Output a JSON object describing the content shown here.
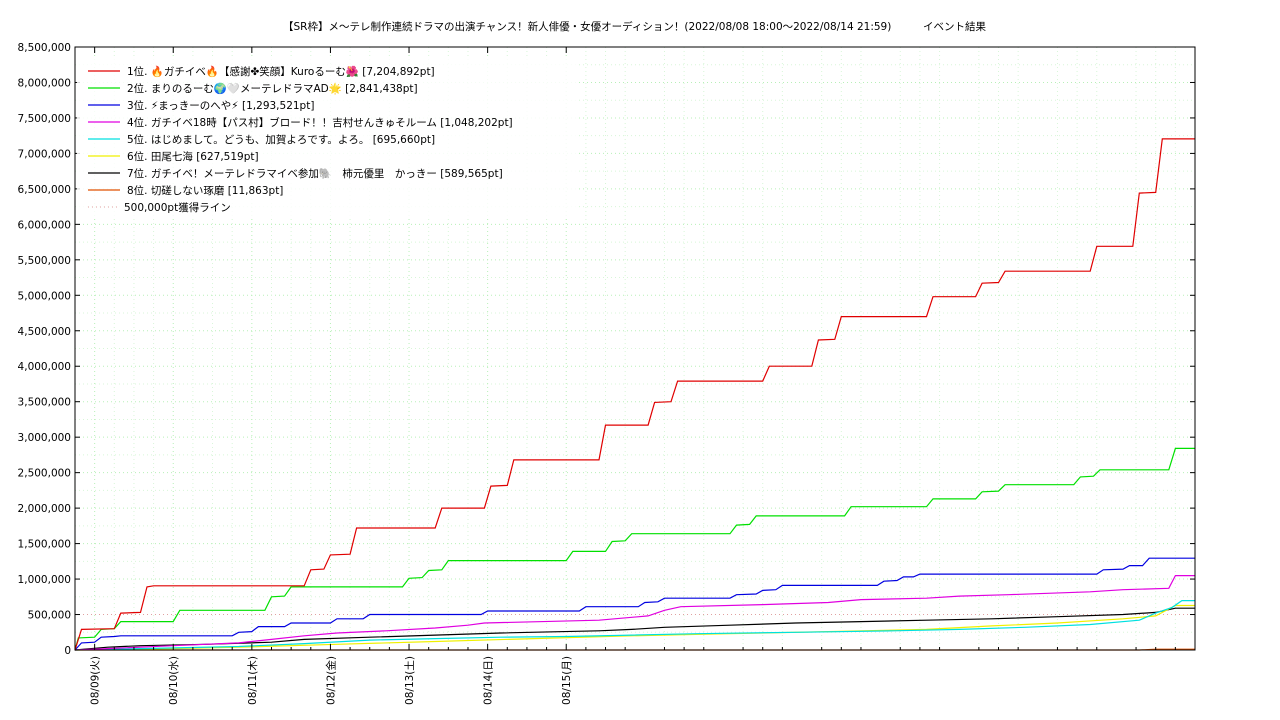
{
  "chart_data": {
    "type": "line",
    "title": "【SR枠】メ〜テレ制作連続ドラマの出演チャンス！新人俳優・女優オーディション！(2022/08/08 18:00〜2022/08/14 21:59)",
    "subtitle": "イベント結果",
    "xlabel": "",
    "ylabel": "",
    "x_ticks": [
      "08/09(火)",
      "08/10(水)",
      "08/11(木)",
      "08/12(金)",
      "08/13(土)",
      "08/14(日)",
      "08/15(月)"
    ],
    "x_start": "2022/08/08 18:00",
    "x_end": "2022/08/15 00:00",
    "y_ticks": [
      "0",
      "500,000",
      "1,000,000",
      "1,500,000",
      "2,000,000",
      "2,500,000",
      "3,000,000",
      "3,500,000",
      "4,000,000",
      "4,500,000",
      "5,000,000",
      "5,500,000",
      "6,000,000",
      "6,500,000",
      "7,000,000",
      "7,500,000",
      "8,000,000",
      "8,500,000"
    ],
    "ylim": [
      0,
      8500000
    ],
    "grid": true,
    "legend_position": "top-left",
    "series": [
      {
        "name": "1位. 🔥ガチイベ🔥【感謝✤笑顔】Kuroるーむ🌺 [7,204,892pt]",
        "color": "#e00000",
        "style": "solid",
        "points": [
          [
            0,
            0
          ],
          [
            2,
            290000
          ],
          [
            12,
            300000
          ],
          [
            14,
            520000
          ],
          [
            20,
            530000
          ],
          [
            22,
            890000
          ],
          [
            24,
            905000
          ],
          [
            70,
            905000
          ],
          [
            72,
            1130000
          ],
          [
            76,
            1140000
          ],
          [
            78,
            1340000
          ],
          [
            84,
            1350000
          ],
          [
            86,
            1720000
          ],
          [
            110,
            1720000
          ],
          [
            112,
            2000000
          ],
          [
            125,
            2000000
          ],
          [
            127,
            2310000
          ],
          [
            132,
            2320000
          ],
          [
            134,
            2680000
          ],
          [
            160,
            2680000
          ],
          [
            162,
            3170000
          ],
          [
            175,
            3170000
          ],
          [
            177,
            3490000
          ],
          [
            182,
            3500000
          ],
          [
            184,
            3790000
          ],
          [
            210,
            3790000
          ],
          [
            212,
            4000000
          ],
          [
            225,
            4000000
          ],
          [
            227,
            4370000
          ],
          [
            232,
            4380000
          ],
          [
            234,
            4700000
          ],
          [
            260,
            4700000
          ],
          [
            262,
            4980000
          ],
          [
            275,
            4980000
          ],
          [
            277,
            5170000
          ],
          [
            282,
            5180000
          ],
          [
            284,
            5340000
          ],
          [
            310,
            5340000
          ],
          [
            312,
            5690000
          ],
          [
            323,
            5690000
          ],
          [
            325,
            6440000
          ],
          [
            330,
            6450000
          ],
          [
            332,
            7204892
          ],
          [
            342,
            7204892
          ]
        ]
      },
      {
        "name": "2位. まりのるーむ🌍🤍メーテレドラマAD🌟 [2,841,438pt]",
        "color": "#00e000",
        "style": "solid",
        "points": [
          [
            0,
            0
          ],
          [
            1,
            170000
          ],
          [
            6,
            180000
          ],
          [
            8,
            290000
          ],
          [
            12,
            300000
          ],
          [
            14,
            400000
          ],
          [
            30,
            400000
          ],
          [
            32,
            560000
          ],
          [
            58,
            560000
          ],
          [
            60,
            750000
          ],
          [
            64,
            760000
          ],
          [
            66,
            890000
          ],
          [
            100,
            890000
          ],
          [
            102,
            1010000
          ],
          [
            106,
            1020000
          ],
          [
            108,
            1120000
          ],
          [
            112,
            1130000
          ],
          [
            114,
            1260000
          ],
          [
            150,
            1260000
          ],
          [
            152,
            1390000
          ],
          [
            162,
            1390000
          ],
          [
            164,
            1530000
          ],
          [
            168,
            1540000
          ],
          [
            170,
            1640000
          ],
          [
            200,
            1640000
          ],
          [
            202,
            1760000
          ],
          [
            206,
            1770000
          ],
          [
            208,
            1890000
          ],
          [
            235,
            1890000
          ],
          [
            237,
            2020000
          ],
          [
            260,
            2020000
          ],
          [
            262,
            2130000
          ],
          [
            275,
            2130000
          ],
          [
            277,
            2230000
          ],
          [
            282,
            2240000
          ],
          [
            284,
            2330000
          ],
          [
            305,
            2330000
          ],
          [
            307,
            2440000
          ],
          [
            311,
            2450000
          ],
          [
            313,
            2540000
          ],
          [
            334,
            2540000
          ],
          [
            336,
            2841438
          ],
          [
            342,
            2841438
          ]
        ]
      },
      {
        "name": "3位. ⚡まっきーのへや⚡ [1,293,521pt]",
        "color": "#0000e0",
        "style": "solid",
        "points": [
          [
            0,
            0
          ],
          [
            2,
            100000
          ],
          [
            6,
            110000
          ],
          [
            8,
            180000
          ],
          [
            12,
            190000
          ],
          [
            14,
            200000
          ],
          [
            48,
            200000
          ],
          [
            50,
            250000
          ],
          [
            54,
            260000
          ],
          [
            56,
            330000
          ],
          [
            64,
            330000
          ],
          [
            66,
            380000
          ],
          [
            78,
            380000
          ],
          [
            80,
            440000
          ],
          [
            88,
            440000
          ],
          [
            90,
            500000
          ],
          [
            124,
            500000
          ],
          [
            126,
            550000
          ],
          [
            154,
            550000
          ],
          [
            156,
            610000
          ],
          [
            172,
            610000
          ],
          [
            174,
            670000
          ],
          [
            178,
            680000
          ],
          [
            180,
            730000
          ],
          [
            200,
            730000
          ],
          [
            202,
            780000
          ],
          [
            208,
            790000
          ],
          [
            210,
            840000
          ],
          [
            214,
            850000
          ],
          [
            216,
            910000
          ],
          [
            245,
            910000
          ],
          [
            247,
            970000
          ],
          [
            251,
            980000
          ],
          [
            253,
            1030000
          ],
          [
            256,
            1030000
          ],
          [
            258,
            1070000
          ],
          [
            312,
            1070000
          ],
          [
            314,
            1130000
          ],
          [
            320,
            1140000
          ],
          [
            322,
            1190000
          ],
          [
            326,
            1190000
          ],
          [
            328,
            1293521
          ],
          [
            342,
            1293521
          ]
        ]
      },
      {
        "name": "4位. ガチイベ18時【パス村】ブロード！！吉村せんきゅそルーム [1,048,202pt]",
        "color": "#e000e0",
        "style": "solid",
        "points": [
          [
            0,
            0
          ],
          [
            10,
            20000
          ],
          [
            30,
            60000
          ],
          [
            50,
            100000
          ],
          [
            60,
            150000
          ],
          [
            70,
            200000
          ],
          [
            80,
            240000
          ],
          [
            95,
            270000
          ],
          [
            110,
            310000
          ],
          [
            120,
            350000
          ],
          [
            125,
            380000
          ],
          [
            160,
            420000
          ],
          [
            175,
            480000
          ],
          [
            180,
            560000
          ],
          [
            185,
            610000
          ],
          [
            210,
            640000
          ],
          [
            230,
            670000
          ],
          [
            240,
            710000
          ],
          [
            260,
            730000
          ],
          [
            270,
            760000
          ],
          [
            285,
            780000
          ],
          [
            310,
            820000
          ],
          [
            320,
            850000
          ],
          [
            334,
            870000
          ],
          [
            336,
            1048202
          ],
          [
            342,
            1048202
          ]
        ]
      },
      {
        "name": "5位. はじめまして。どうも、加賀よろです。よろ。 [695,660pt]",
        "color": "#00e0e0",
        "style": "solid",
        "points": [
          [
            0,
            0
          ],
          [
            20,
            20000
          ],
          [
            50,
            50000
          ],
          [
            70,
            90000
          ],
          [
            90,
            140000
          ],
          [
            110,
            160000
          ],
          [
            130,
            180000
          ],
          [
            150,
            190000
          ],
          [
            170,
            210000
          ],
          [
            190,
            230000
          ],
          [
            220,
            250000
          ],
          [
            250,
            270000
          ],
          [
            270,
            290000
          ],
          [
            290,
            320000
          ],
          [
            310,
            360000
          ],
          [
            325,
            420000
          ],
          [
            330,
            520000
          ],
          [
            335,
            600000
          ],
          [
            338,
            695660
          ],
          [
            342,
            695660
          ]
        ]
      },
      {
        "name": "6位. 田尾七海 [627,519pt]",
        "color": "#f0f000",
        "style": "solid",
        "points": [
          [
            0,
            0
          ],
          [
            20,
            10000
          ],
          [
            50,
            40000
          ],
          [
            80,
            80000
          ],
          [
            110,
            120000
          ],
          [
            140,
            160000
          ],
          [
            170,
            200000
          ],
          [
            200,
            230000
          ],
          [
            230,
            260000
          ],
          [
            260,
            290000
          ],
          [
            280,
            340000
          ],
          [
            300,
            380000
          ],
          [
            320,
            440000
          ],
          [
            330,
            480000
          ],
          [
            336,
            627519
          ],
          [
            342,
            627519
          ]
        ]
      },
      {
        "name": "7位. ガチイベ！メーテレドラマイベ参加🐘　柿元優里　かっきー [589,565pt]",
        "color": "#000000",
        "style": "solid",
        "points": [
          [
            0,
            0
          ],
          [
            10,
            40000
          ],
          [
            20,
            60000
          ],
          [
            40,
            80000
          ],
          [
            60,
            110000
          ],
          [
            70,
            150000
          ],
          [
            90,
            180000
          ],
          [
            110,
            210000
          ],
          [
            130,
            240000
          ],
          [
            160,
            270000
          ],
          [
            170,
            290000
          ],
          [
            180,
            320000
          ],
          [
            200,
            350000
          ],
          [
            220,
            380000
          ],
          [
            240,
            400000
          ],
          [
            260,
            420000
          ],
          [
            280,
            440000
          ],
          [
            300,
            470000
          ],
          [
            320,
            500000
          ],
          [
            330,
            530000
          ],
          [
            336,
            589565
          ],
          [
            342,
            589565
          ]
        ]
      },
      {
        "name": "8位. 切磋しない琢磨 [11,863pt]",
        "color": "#e05000",
        "style": "solid",
        "points": [
          [
            0,
            0
          ],
          [
            325,
            0
          ],
          [
            330,
            11863
          ],
          [
            342,
            11863
          ]
        ]
      },
      {
        "name": "500,000pt獲得ライン",
        "color": "#e0a0a0",
        "style": "dotted",
        "points": [
          [
            0,
            500000
          ],
          [
            342,
            500000
          ]
        ]
      }
    ]
  }
}
